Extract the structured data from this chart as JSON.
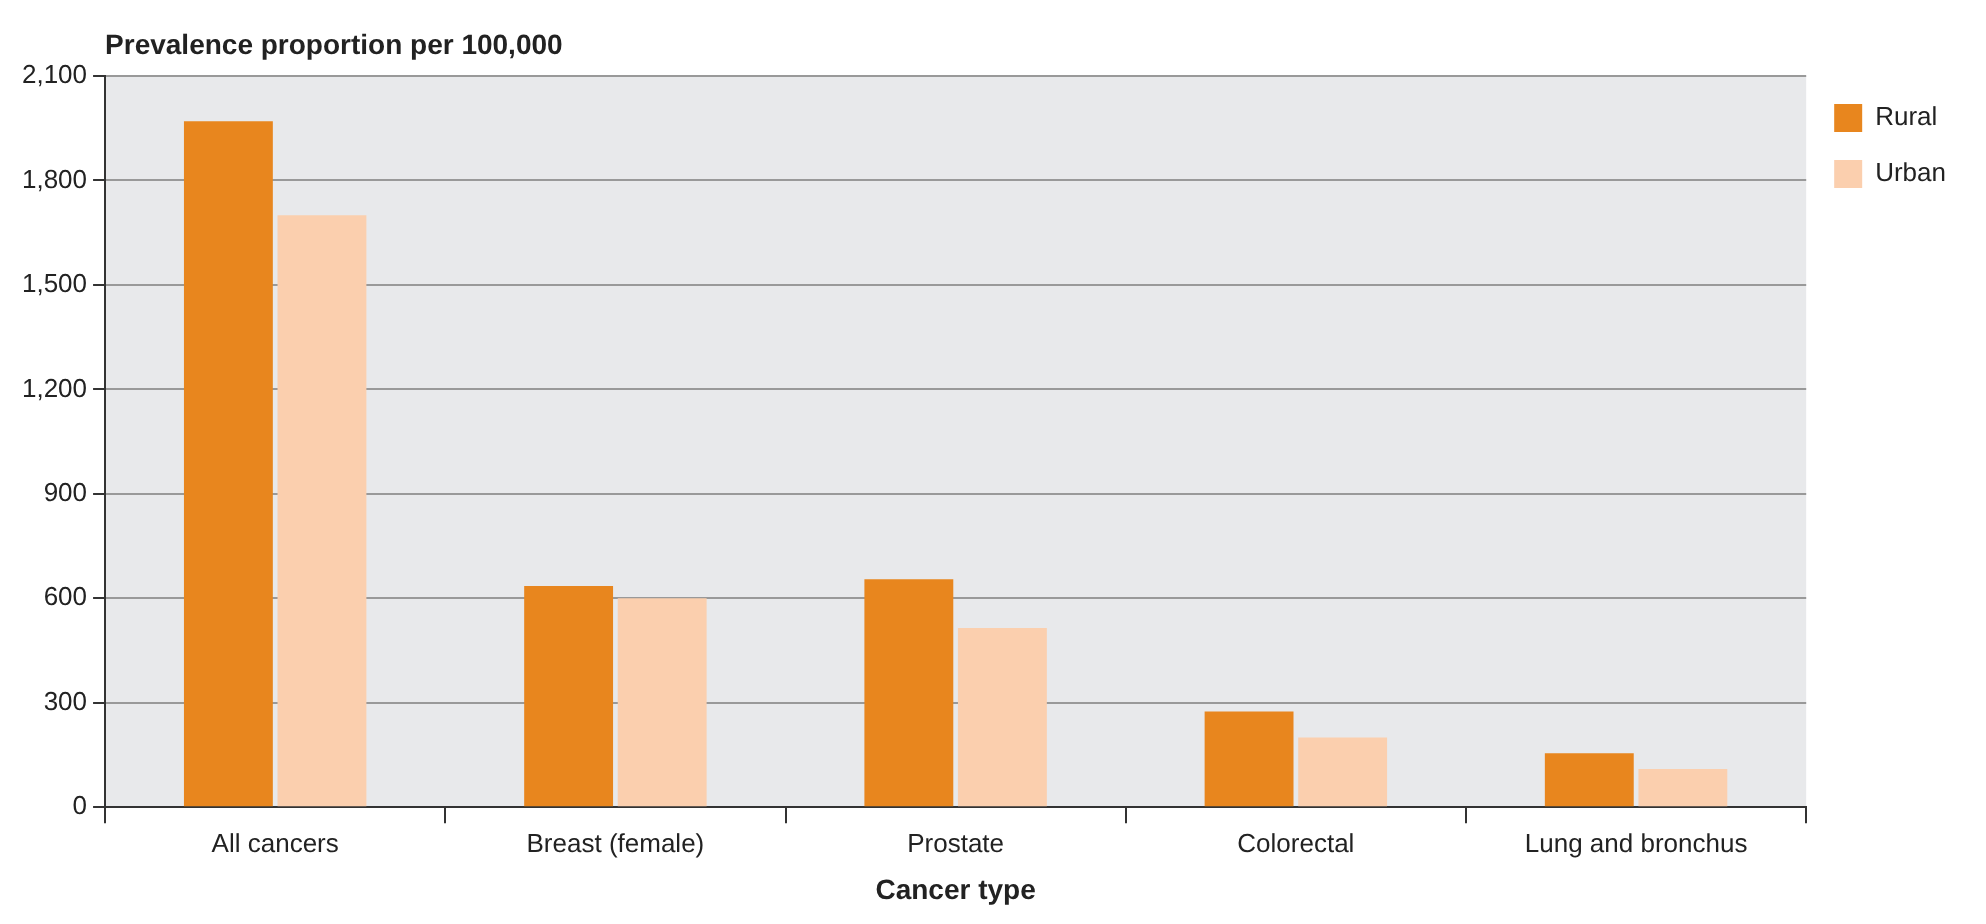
{
  "chart_data": {
    "type": "bar",
    "ylabel": "Prevalence proportion per 100,000",
    "xlabel": "Cancer type",
    "categories": [
      "All cancers",
      "Breast (female)",
      "Prostate",
      "Colorectal",
      "Lung and bronchus"
    ],
    "series": [
      {
        "name": "Rural",
        "color": "#e8861e",
        "values": [
          1970,
          635,
          655,
          275,
          155
        ]
      },
      {
        "name": "Urban",
        "color": "#fbcfae",
        "values": [
          1700,
          600,
          515,
          200,
          110
        ]
      }
    ],
    "ylim": [
      0,
      2100
    ],
    "yticks": [
      {
        "value": 0,
        "label": "0"
      },
      {
        "value": 300,
        "label": "300"
      },
      {
        "value": 600,
        "label": "600"
      },
      {
        "value": 900,
        "label": "900"
      },
      {
        "value": 1200,
        "label": "1,200"
      },
      {
        "value": 1500,
        "label": "1,500"
      },
      {
        "value": 1800,
        "label": "1,800"
      },
      {
        "value": 2100,
        "label": "2,100"
      }
    ],
    "grid": "y",
    "legend": "top right"
  }
}
